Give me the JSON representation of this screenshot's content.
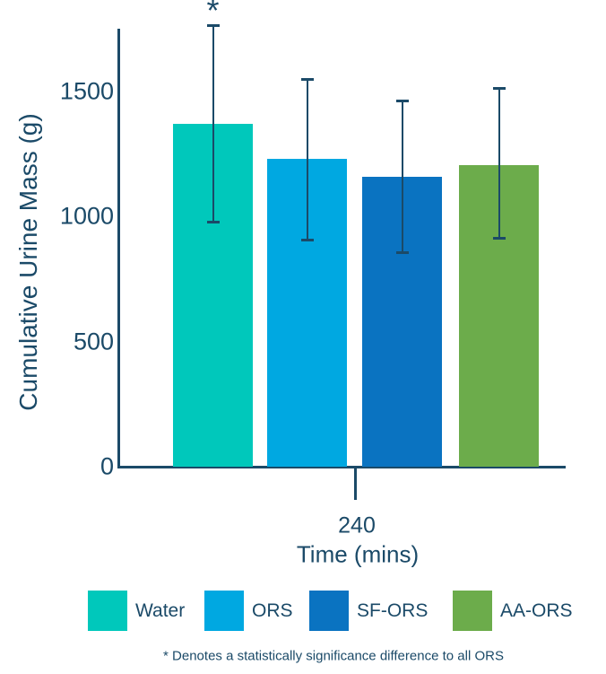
{
  "chart_data": {
    "type": "bar",
    "ylabel": "Cumulative Urine Mass (g)",
    "xlabel": "Time (mins)",
    "x_tick_label": "240",
    "yticks": [
      0,
      500,
      1000,
      1500
    ],
    "ylim": [
      0,
      1750
    ],
    "grid": false,
    "axis_color": "#1B4A68",
    "background_color": "#FFFFFF",
    "categories": [
      "Water",
      "ORS",
      "SF-ORS",
      "AA-ORS"
    ],
    "series": [
      {
        "name": "Water",
        "value": 1370,
        "error_low": 975,
        "error_high": 1765,
        "color": "#00C8BB",
        "annotation": "*"
      },
      {
        "name": "ORS",
        "value": 1230,
        "error_low": 905,
        "error_high": 1550,
        "color": "#00A8E1",
        "annotation": ""
      },
      {
        "name": "SF-ORS",
        "value": 1160,
        "error_low": 855,
        "error_high": 1465,
        "color": "#0A73C1",
        "annotation": ""
      },
      {
        "name": "AA-ORS",
        "value": 1205,
        "error_low": 910,
        "error_high": 1515,
        "color": "#6CAC4B",
        "annotation": ""
      }
    ],
    "legend": {
      "position": "bottom",
      "entries": [
        "Water",
        "ORS",
        "SF-ORS",
        "AA-ORS"
      ]
    },
    "footnote": "* Denotes a statistically significance difference to all ORS"
  }
}
